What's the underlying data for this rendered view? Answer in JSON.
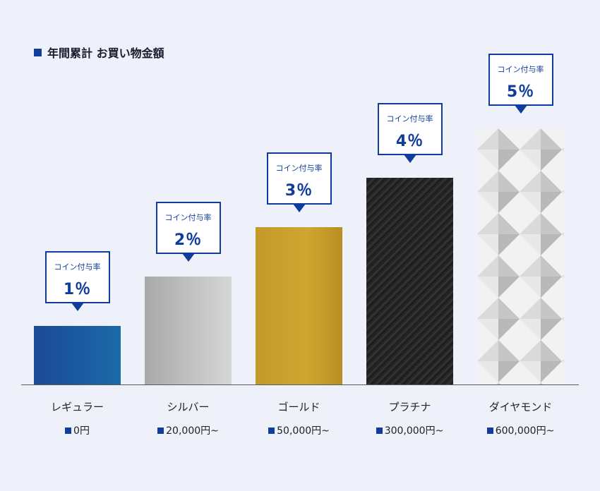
{
  "legend": {
    "title": "年間累計 お買い物金額"
  },
  "chart_data": {
    "type": "bar",
    "title": "",
    "xlabel": "",
    "ylabel": "",
    "categories": [
      "レギュラー",
      "シルバー",
      "ゴールド",
      "プラチナ",
      "ダイヤモンド"
    ],
    "amounts": [
      "0円",
      "20,000円~",
      "50,000円~",
      "300,000円~",
      "600,000円~"
    ],
    "values": [
      1,
      2,
      3,
      4,
      5
    ],
    "value_labels": [
      "1％",
      "2％",
      "3％",
      "4％",
      "5％"
    ],
    "callout_label": "コイン付与率",
    "unit": "%",
    "ylim": [
      0,
      5
    ],
    "grid": false,
    "colors": [
      "#1b4f9a",
      "#b9b9b9",
      "#c9a02a",
      "#2a2a2a",
      "#e6e6e6"
    ],
    "accent": "#103c9c"
  }
}
